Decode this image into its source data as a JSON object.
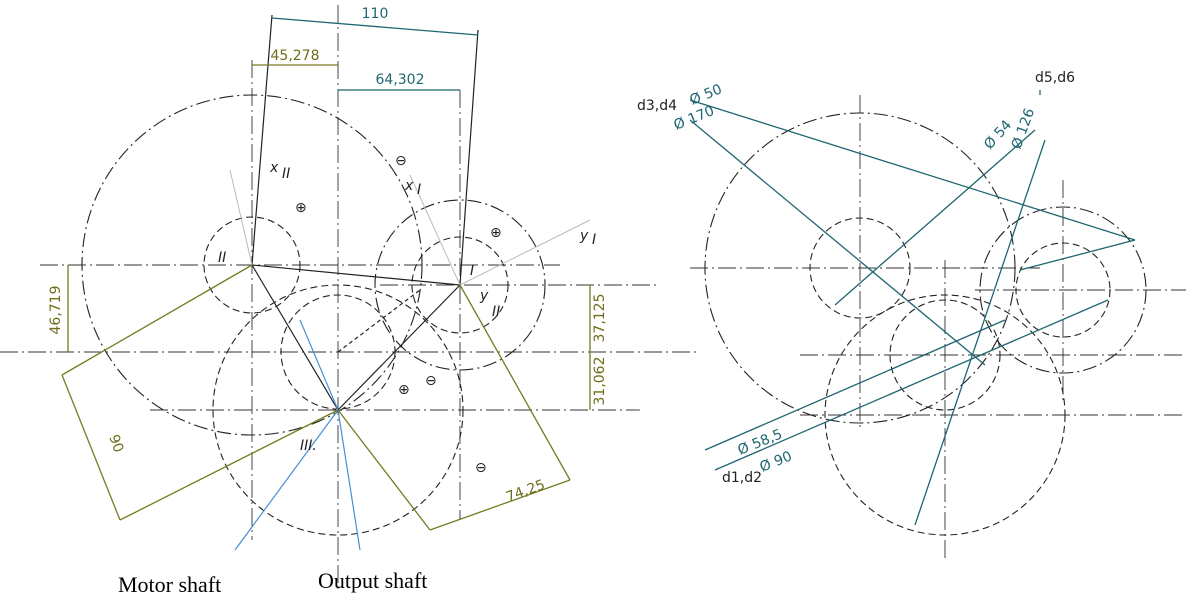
{
  "left_view": {
    "dimensions": [
      "110",
      "45,278",
      "64,302",
      "46,719",
      "37,125",
      "31,062",
      "90",
      "74,25"
    ],
    "shaft_labels": [
      "II",
      "I",
      "III."
    ],
    "axis_labels": [
      "x",
      "II",
      "x",
      "I",
      "y",
      "I",
      "y",
      "II"
    ],
    "signs": [
      "⊖",
      "⊕",
      "⊕",
      "⊕",
      "⊖",
      "⊖"
    ],
    "captions": [
      "Motor shaft",
      "Output shaft"
    ]
  },
  "right_view": {
    "labels": [
      "d3,d4",
      "Ø 50",
      "Ø 170",
      "Ø 54",
      "Ø 126",
      "d5,d6",
      "Ø 58,5",
      "Ø 90",
      "d1,d2"
    ]
  }
}
